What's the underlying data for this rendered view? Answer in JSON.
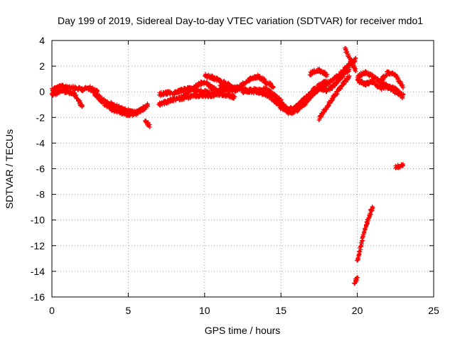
{
  "chart_data": {
    "type": "scatter",
    "title": "Day 199 of 2019, Sidereal Day-to-day VTEC variation (SDTVAR) for receiver mdo1",
    "xlabel": "GPS time / hours",
    "ylabel": "SDTVAR / TECUs",
    "xlim": [
      0,
      25
    ],
    "ylim": [
      -16,
      4
    ],
    "xticks": [
      "0",
      "5",
      "10",
      "15",
      "20",
      "25"
    ],
    "yticks": [
      "4",
      "2",
      "0",
      "-2",
      "-4",
      "-6",
      "-8",
      "-10",
      "-12",
      "-14",
      "-16"
    ],
    "grid": true,
    "marker": "+",
    "color": "#ff0000",
    "segments": [
      {
        "name": "track-1",
        "x": [
          0.0,
          0.5,
          1.0,
          1.5,
          2.0,
          2.5,
          3.0
        ],
        "y": [
          0.2,
          0.4,
          0.4,
          0.3,
          0.2,
          0.3,
          0.0
        ]
      },
      {
        "name": "track-2",
        "x": [
          0.0,
          0.3,
          0.6,
          1.0,
          1.5,
          2.0
        ],
        "y": [
          -0.2,
          -0.1,
          0.1,
          0.0,
          -0.2,
          -1.2
        ]
      },
      {
        "name": "track-3",
        "x": [
          2.5,
          3.0,
          3.5,
          4.0,
          4.5,
          5.0,
          5.5,
          6.0,
          6.3
        ],
        "y": [
          0.2,
          -0.3,
          -0.8,
          -1.0,
          -1.3,
          -1.5,
          -1.6,
          -1.4,
          -1.0
        ]
      },
      {
        "name": "track-4",
        "x": [
          2.8,
          3.5,
          4.0,
          4.5,
          5.0,
          5.5,
          6.0
        ],
        "y": [
          -0.2,
          -1.0,
          -1.4,
          -1.6,
          -1.8,
          -1.7,
          -1.2
        ]
      },
      {
        "name": "track-5",
        "x": [
          6.1,
          6.3,
          6.4
        ],
        "y": [
          -2.3,
          -2.5,
          -2.7
        ]
      },
      {
        "name": "track-6",
        "x": [
          7.0,
          7.5,
          8.0,
          8.5,
          9.0,
          9.5,
          10.0,
          10.5,
          11.0,
          11.5,
          12.0
        ],
        "y": [
          -1.0,
          -0.8,
          -0.6,
          -0.5,
          -0.4,
          -0.3,
          -0.3,
          -0.3,
          -0.2,
          -0.3,
          -0.4
        ]
      },
      {
        "name": "track-7",
        "x": [
          7.0,
          7.5,
          8.0,
          8.5,
          9.0,
          9.5,
          10.0,
          10.5,
          11.0
        ],
        "y": [
          -0.2,
          -0.1,
          -0.1,
          0.1,
          0.3,
          0.1,
          0.0,
          -0.1,
          0.0
        ]
      },
      {
        "name": "track-8",
        "x": [
          8.5,
          9.0,
          9.5,
          10.0,
          10.5,
          11.0,
          11.5,
          12.0
        ],
        "y": [
          -0.4,
          0.0,
          0.5,
          0.8,
          0.3,
          0.1,
          0.2,
          0.3
        ]
      },
      {
        "name": "track-9",
        "x": [
          10.0,
          10.5,
          11.0,
          11.5,
          12.0
        ],
        "y": [
          1.3,
          1.1,
          0.9,
          0.6,
          0.2
        ]
      },
      {
        "name": "track-10",
        "x": [
          11.0,
          11.5,
          12.0,
          12.5,
          13.0,
          13.5,
          14.0,
          14.5
        ],
        "y": [
          0.4,
          0.2,
          0.1,
          0.6,
          1.0,
          1.2,
          0.8,
          0.4
        ]
      },
      {
        "name": "track-11",
        "x": [
          12.5,
          13.0,
          13.5,
          14.0,
          14.5,
          15.0,
          15.5,
          16.0
        ],
        "y": [
          0.0,
          0.1,
          0.2,
          0.2,
          -0.2,
          -0.7,
          -1.6,
          -1.2
        ]
      },
      {
        "name": "track-12",
        "x": [
          12.0,
          12.5,
          13.0,
          13.5,
          14.0,
          14.5,
          15.0,
          15.5,
          16.0,
          16.5,
          17.0,
          17.5,
          18.0,
          18.5,
          19.0,
          19.5
        ],
        "y": [
          0.4,
          0.2,
          0.0,
          0.0,
          -0.2,
          -0.6,
          -1.2,
          -1.6,
          -1.5,
          -1.0,
          -0.3,
          0.3,
          0.1,
          0.5,
          1.2,
          1.8
        ]
      },
      {
        "name": "track-13",
        "x": [
          15.5,
          16.0,
          16.5,
          17.0,
          17.5,
          18.0
        ],
        "y": [
          -1.4,
          -1.2,
          -0.6,
          0.0,
          0.5,
          0.8
        ]
      },
      {
        "name": "track-14",
        "x": [
          16.5,
          17.0,
          17.5,
          18.0,
          18.5,
          19.0,
          19.5,
          19.9
        ],
        "y": [
          -0.6,
          -0.2,
          0.2,
          0.6,
          1.0,
          1.5,
          2.2,
          2.5
        ]
      },
      {
        "name": "track-15",
        "x": [
          17.5,
          18.0,
          18.5,
          19.0,
          19.5
        ],
        "y": [
          -2.1,
          -1.2,
          -0.3,
          0.5,
          1.2
        ]
      },
      {
        "name": "track-16",
        "x": [
          16.9,
          17.2,
          17.5,
          17.8,
          18.0
        ],
        "y": [
          1.4,
          1.6,
          1.7,
          1.5,
          1.3
        ]
      },
      {
        "name": "track-17",
        "x": [
          19.2,
          19.4,
          19.6,
          19.9
        ],
        "y": [
          3.4,
          2.8,
          2.3,
          1.7
        ]
      },
      {
        "name": "track-18",
        "x": [
          20.0,
          20.5,
          21.0,
          21.5,
          22.0,
          22.5,
          23.0
        ],
        "y": [
          1.2,
          1.5,
          1.2,
          0.8,
          1.5,
          1.3,
          0.4
        ]
      },
      {
        "name": "track-19",
        "x": [
          20.0,
          20.5,
          21.0,
          21.5,
          22.0,
          22.5,
          23.0
        ],
        "y": [
          0.9,
          0.6,
          0.8,
          0.3,
          0.4,
          0.2,
          -0.3
        ]
      },
      {
        "name": "track-20",
        "x": [
          21.5,
          22.0,
          22.5,
          23.0
        ],
        "y": [
          0.8,
          0.4,
          0.0,
          -0.4
        ]
      },
      {
        "name": "track-21",
        "x": [
          19.8,
          19.9,
          20.0
        ],
        "y": [
          -14.9,
          -14.7,
          -14.5
        ]
      },
      {
        "name": "track-22",
        "x": [
          20.0,
          20.2,
          20.4,
          20.6,
          20.8,
          21.0
        ],
        "y": [
          -13.2,
          -12.2,
          -11.2,
          -10.3,
          -9.6,
          -9.0
        ]
      },
      {
        "name": "track-23",
        "x": [
          22.5,
          22.8,
          23.0
        ],
        "y": [
          -5.9,
          -5.8,
          -5.7
        ]
      }
    ]
  }
}
